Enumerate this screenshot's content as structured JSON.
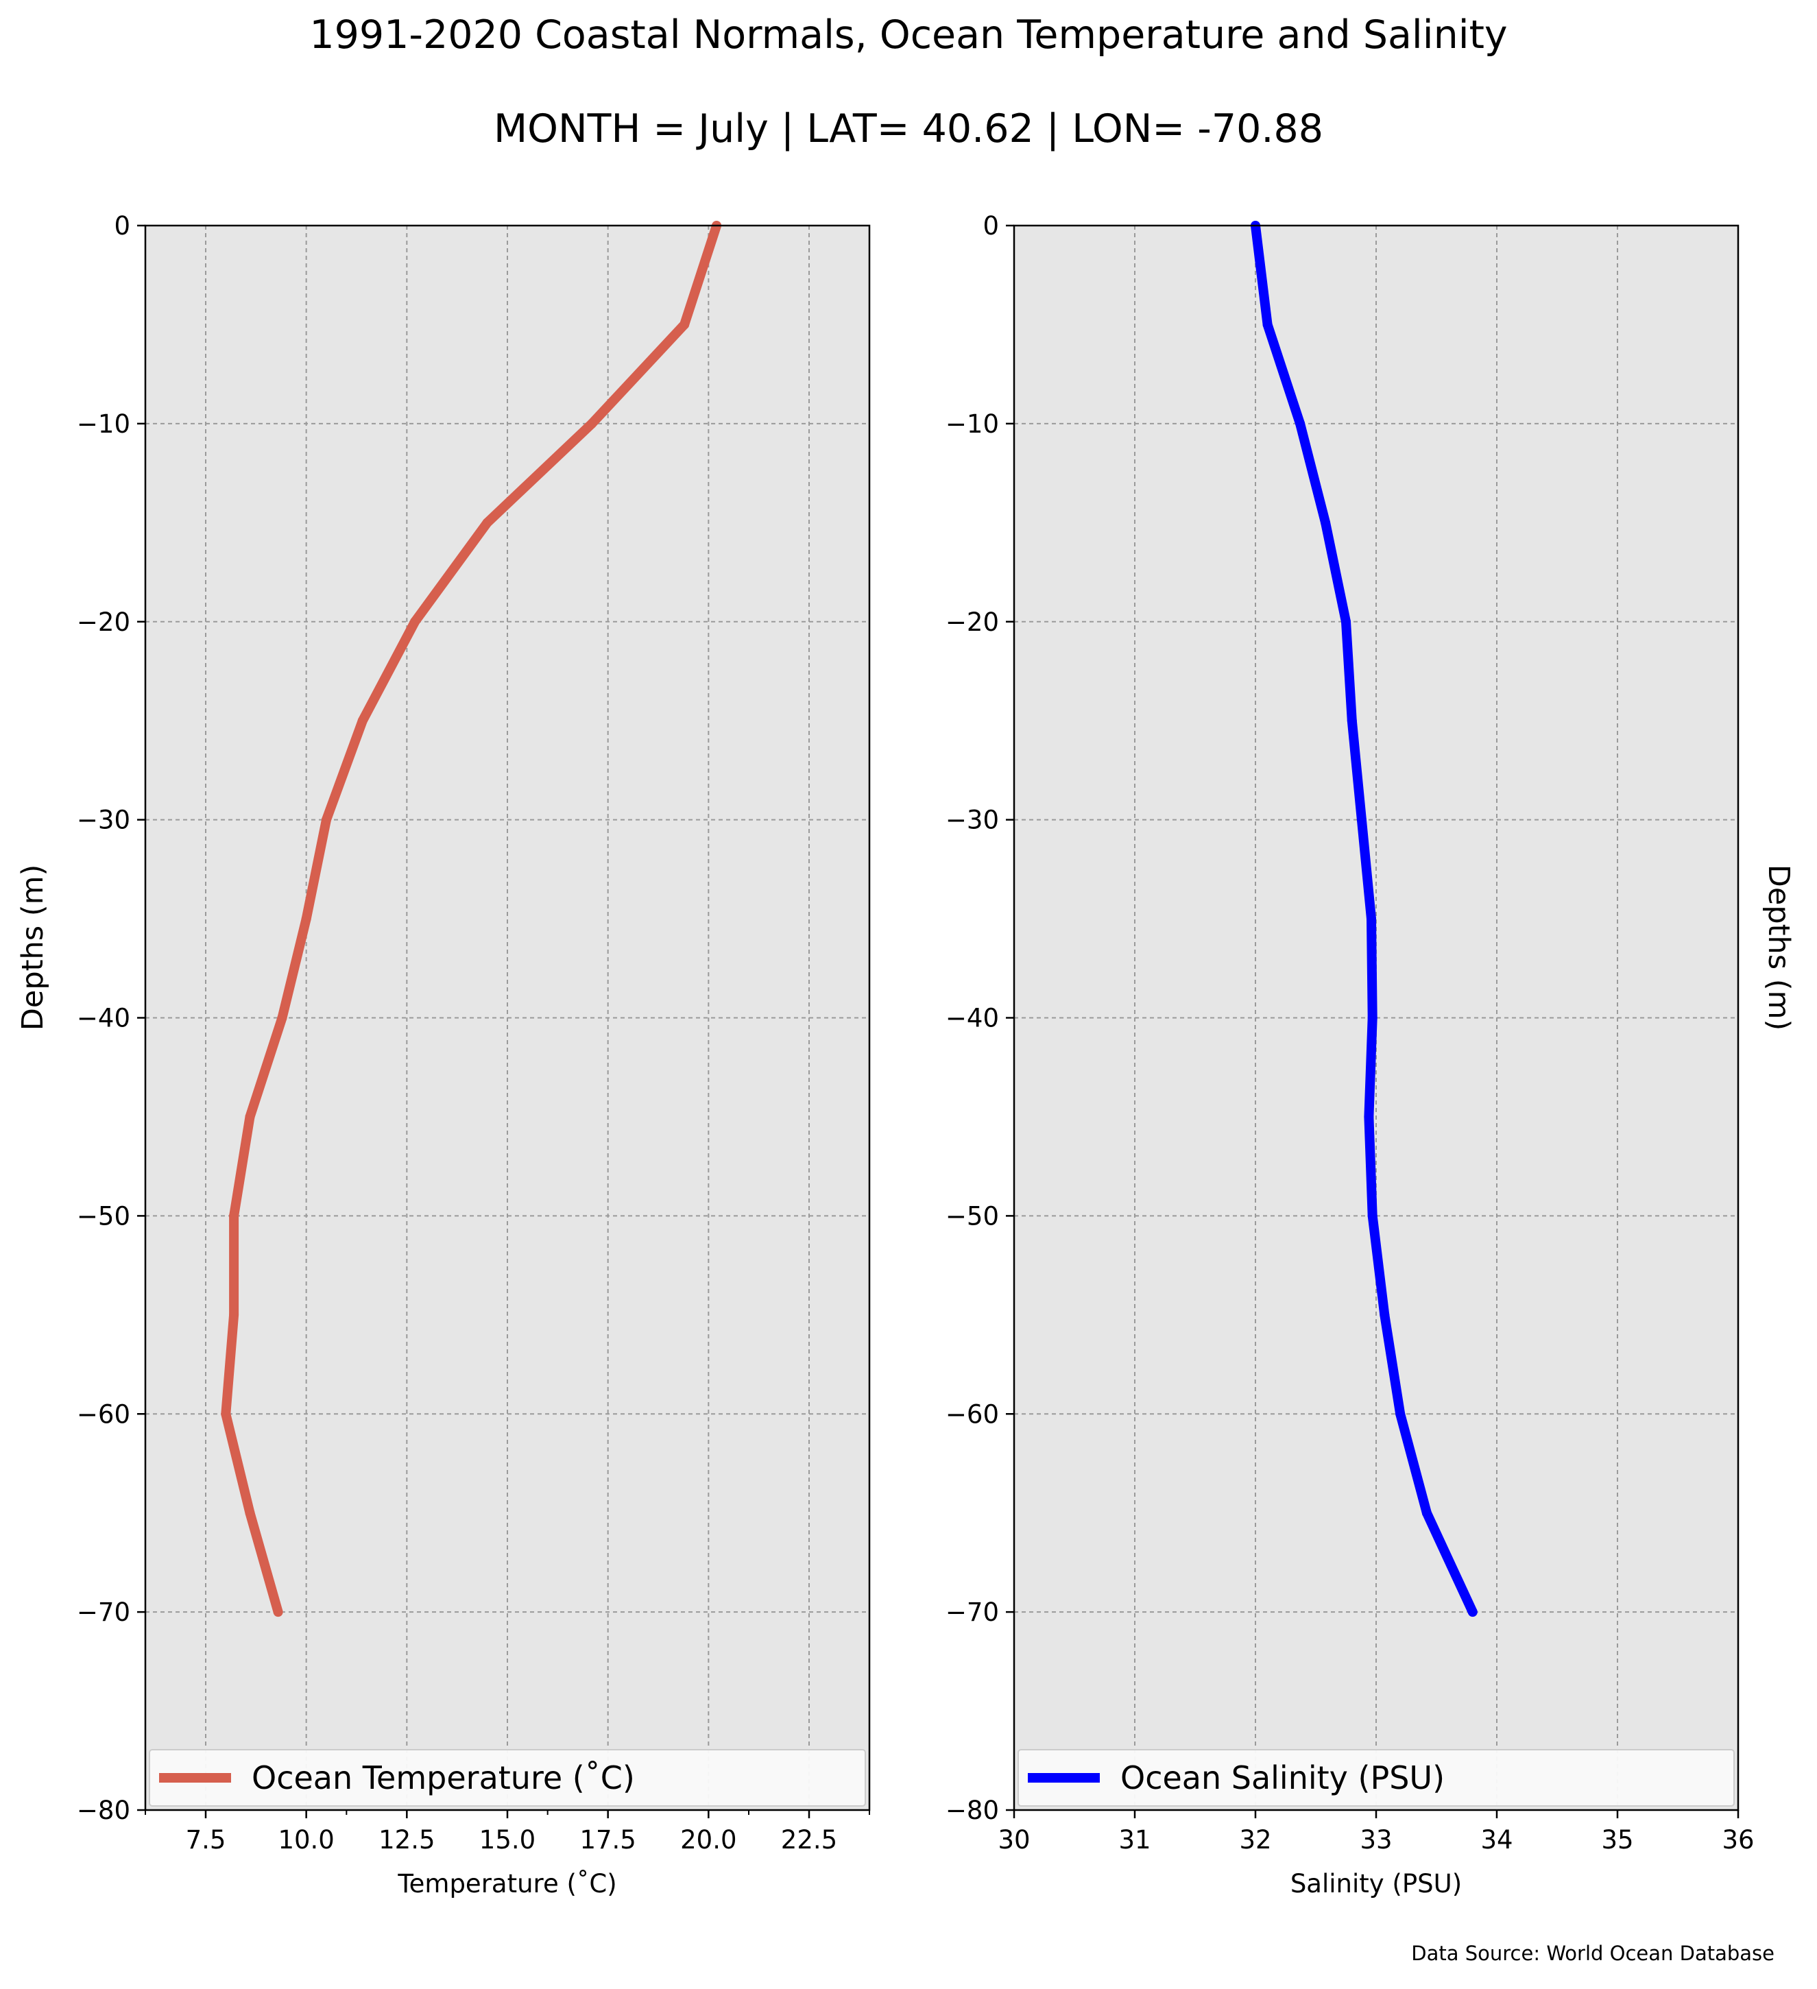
{
  "figure": {
    "title": "1991-2020 Coastal Normals, Ocean Temperature and Salinity",
    "subtitle": "MONTH = July | LAT= 40.62 | LON= -70.88",
    "source_note": "Data Source: World Ocean Database"
  },
  "chart_data": [
    {
      "type": "line",
      "xlabel": "Temperature ($^\\circ$C)",
      "xlabel_display": "Temperature (˚C)",
      "ylabel": "Depths (m)",
      "xlim": [
        6.0,
        24.0
      ],
      "ylim": [
        -80,
        0
      ],
      "xticks": [
        7.5,
        10.0,
        12.5,
        15.0,
        17.5,
        20.0,
        22.5
      ],
      "xtick_labels": [
        "7.5",
        "10.0",
        "12.5",
        "15.0",
        "17.5",
        "20.0",
        "22.5"
      ],
      "yticks": [
        0,
        -10,
        -20,
        -30,
        -40,
        -50,
        -60,
        -70,
        -80
      ],
      "ytick_labels": [
        "0",
        "−10",
        "−20",
        "−30",
        "−40",
        "−50",
        "−60",
        "−70",
        "−80"
      ],
      "grid": true,
      "background": "#e6e6e6",
      "legend_position": "bottom",
      "series": [
        {
          "name": "Ocean Temperature (˚C)",
          "color": "#d65f4e",
          "depth": [
            0,
            -5,
            -10,
            -15,
            -20,
            -25,
            -30,
            -35,
            -40,
            -45,
            -50,
            -55,
            -60,
            -65,
            -70
          ],
          "x": [
            20.2,
            19.4,
            17.1,
            14.5,
            12.7,
            11.4,
            10.5,
            10.0,
            9.4,
            8.6,
            8.2,
            8.2,
            8.0,
            8.6,
            9.3
          ]
        }
      ]
    },
    {
      "type": "line",
      "xlabel": "Salinity (PSU)",
      "ylabel": "Depths (m)",
      "xlim": [
        30,
        36
      ],
      "ylim": [
        -80,
        0
      ],
      "xticks": [
        30,
        31,
        32,
        33,
        34,
        35,
        36
      ],
      "xtick_labels": [
        "30",
        "31",
        "32",
        "33",
        "34",
        "35",
        "36"
      ],
      "yticks": [
        0,
        -10,
        -20,
        -30,
        -40,
        -50,
        -60,
        -70,
        -80
      ],
      "ytick_labels": [
        "0",
        "−10",
        "−20",
        "−30",
        "−40",
        "−50",
        "−60",
        "−70",
        "−80"
      ],
      "grid": true,
      "background": "#e6e6e6",
      "legend_position": "bottom",
      "series": [
        {
          "name": "Ocean Salinity (PSU)",
          "color": "#0000ff",
          "depth": [
            0,
            -5,
            -10,
            -15,
            -20,
            -25,
            -30,
            -35,
            -40,
            -45,
            -50,
            -55,
            -60,
            -65,
            -70
          ],
          "x": [
            32.0,
            32.1,
            32.37,
            32.58,
            32.75,
            32.8,
            32.88,
            32.96,
            32.97,
            32.94,
            32.97,
            33.07,
            33.2,
            33.42,
            33.8
          ]
        }
      ]
    }
  ]
}
